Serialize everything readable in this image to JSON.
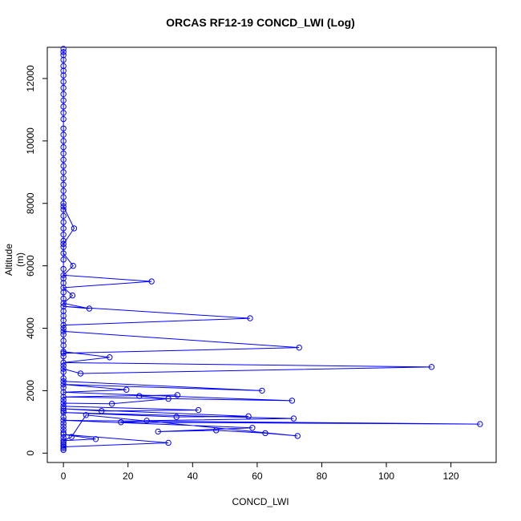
{
  "chart_data": {
    "type": "line",
    "title": "ORCAS RF12-19 CONCD_LWI (Log)",
    "xlabel": "CONCD_LWI",
    "ylabel": "Altitude (m)",
    "xlim": [
      -5,
      134
    ],
    "ylim": [
      -300,
      13000
    ],
    "x_ticks": [
      0,
      20,
      40,
      60,
      80,
      100,
      120
    ],
    "y_ticks": [
      0,
      2000,
      4000,
      6000,
      8000,
      10000,
      12000
    ],
    "series_color": "#0000ff",
    "marker": "open-circle",
    "legend": "none",
    "grid": false,
    "spike_points": [
      {
        "x": 0,
        "y": 7900
      },
      {
        "x": 3.3,
        "y": 7200
      },
      {
        "x": 0,
        "y": 6700
      },
      {
        "x": 0,
        "y": 6400
      },
      {
        "x": 3,
        "y": 6000
      },
      {
        "x": 0,
        "y": 5700
      },
      {
        "x": 27.3,
        "y": 5500
      },
      {
        "x": 0,
        "y": 5300
      },
      {
        "x": 2.8,
        "y": 5050
      },
      {
        "x": 0,
        "y": 4800
      },
      {
        "x": 8,
        "y": 4630
      },
      {
        "x": 0,
        "y": 4700
      },
      {
        "x": 57.8,
        "y": 4320
      },
      {
        "x": 0,
        "y": 4100
      },
      {
        "x": 0,
        "y": 3900
      },
      {
        "x": 73,
        "y": 3380
      },
      {
        "x": 0,
        "y": 3200
      },
      {
        "x": 0,
        "y": 3250
      },
      {
        "x": 14.3,
        "y": 3070
      },
      {
        "x": 0,
        "y": 2900
      },
      {
        "x": 114,
        "y": 2760
      },
      {
        "x": 5.3,
        "y": 2550
      },
      {
        "x": 0,
        "y": 2700
      },
      {
        "x": 0,
        "y": 2400
      },
      {
        "x": 0,
        "y": 2300
      },
      {
        "x": 61.5,
        "y": 2000
      },
      {
        "x": 0,
        "y": 2200
      },
      {
        "x": 19.5,
        "y": 2030
      },
      {
        "x": 0,
        "y": 1950
      },
      {
        "x": 70.8,
        "y": 1680
      },
      {
        "x": 0,
        "y": 1800
      },
      {
        "x": 35.3,
        "y": 1860
      },
      {
        "x": 23.5,
        "y": 1830
      },
      {
        "x": 32.5,
        "y": 1740
      },
      {
        "x": 15,
        "y": 1580
      },
      {
        "x": 0,
        "y": 1600
      },
      {
        "x": 0,
        "y": 1500
      },
      {
        "x": 41.8,
        "y": 1380
      },
      {
        "x": 11.8,
        "y": 1350
      },
      {
        "x": 0,
        "y": 1420
      },
      {
        "x": 57.3,
        "y": 1180
      },
      {
        "x": 35,
        "y": 1160
      },
      {
        "x": 0,
        "y": 1300
      },
      {
        "x": 71.3,
        "y": 1110
      },
      {
        "x": 25.8,
        "y": 1040
      },
      {
        "x": 17.8,
        "y": 990
      },
      {
        "x": 129,
        "y": 930
      },
      {
        "x": 0,
        "y": 1050
      },
      {
        "x": 58.5,
        "y": 810
      },
      {
        "x": 29.3,
        "y": 690
      },
      {
        "x": 47.3,
        "y": 730
      },
      {
        "x": 62.5,
        "y": 640
      },
      {
        "x": 72.5,
        "y": 550
      },
      {
        "x": 7,
        "y": 1220
      },
      {
        "x": 2.5,
        "y": 520
      },
      {
        "x": 0,
        "y": 400
      },
      {
        "x": 10,
        "y": 450
      },
      {
        "x": 0,
        "y": 600
      },
      {
        "x": 32.5,
        "y": 330
      },
      {
        "x": 0,
        "y": 200
      }
    ],
    "zero_column_points": [
      {
        "x": 0,
        "y": 12950
      },
      {
        "x": 0,
        "y": 12850
      },
      {
        "x": 0,
        "y": 12750
      },
      {
        "x": 0,
        "y": 12600
      },
      {
        "x": 0,
        "y": 12400
      },
      {
        "x": 0,
        "y": 12250
      },
      {
        "x": 0,
        "y": 12100
      },
      {
        "x": 0,
        "y": 11900
      },
      {
        "x": 0,
        "y": 11700
      },
      {
        "x": 0,
        "y": 11500
      },
      {
        "x": 0,
        "y": 11300
      },
      {
        "x": 0,
        "y": 11100
      },
      {
        "x": 0,
        "y": 10900
      },
      {
        "x": 0,
        "y": 10700
      },
      {
        "x": 0,
        "y": 10400
      },
      {
        "x": 0,
        "y": 10200
      },
      {
        "x": 0,
        "y": 10000
      },
      {
        "x": 0,
        "y": 9800
      },
      {
        "x": 0,
        "y": 9600
      },
      {
        "x": 0,
        "y": 9400
      },
      {
        "x": 0,
        "y": 9200
      },
      {
        "x": 0,
        "y": 9000
      },
      {
        "x": 0,
        "y": 8800
      },
      {
        "x": 0,
        "y": 8600
      },
      {
        "x": 0,
        "y": 8400
      },
      {
        "x": 0,
        "y": 8200
      },
      {
        "x": 0,
        "y": 8000
      },
      {
        "x": 0,
        "y": 7800
      },
      {
        "x": 0,
        "y": 7600
      },
      {
        "x": 0,
        "y": 7400
      },
      {
        "x": 0,
        "y": 7200
      },
      {
        "x": 0,
        "y": 7000
      },
      {
        "x": 0,
        "y": 6800
      },
      {
        "x": 0,
        "y": 6600
      },
      {
        "x": 0,
        "y": 6200
      },
      {
        "x": 0,
        "y": 5900
      },
      {
        "x": 0,
        "y": 5600
      },
      {
        "x": 0,
        "y": 5450
      },
      {
        "x": 0,
        "y": 5150
      },
      {
        "x": 0,
        "y": 4950
      },
      {
        "x": 0,
        "y": 4550
      },
      {
        "x": 0,
        "y": 4400
      },
      {
        "x": 0,
        "y": 4250
      },
      {
        "x": 0,
        "y": 4000
      },
      {
        "x": 0,
        "y": 3800
      },
      {
        "x": 0,
        "y": 3600
      },
      {
        "x": 0,
        "y": 3450
      },
      {
        "x": 0,
        "y": 3100
      },
      {
        "x": 0,
        "y": 2800
      },
      {
        "x": 0,
        "y": 2600
      },
      {
        "x": 0,
        "y": 2100
      },
      {
        "x": 0,
        "y": 1700
      },
      {
        "x": 0,
        "y": 1350
      },
      {
        "x": 0,
        "y": 1150
      },
      {
        "x": 0,
        "y": 950
      },
      {
        "x": 0,
        "y": 850
      },
      {
        "x": 0,
        "y": 750
      },
      {
        "x": 0,
        "y": 650
      },
      {
        "x": 0,
        "y": 500
      },
      {
        "x": 0,
        "y": 350
      },
      {
        "x": 0,
        "y": 300
      },
      {
        "x": 0,
        "y": 250
      },
      {
        "x": 0,
        "y": 150
      },
      {
        "x": 0,
        "y": 100
      }
    ]
  }
}
